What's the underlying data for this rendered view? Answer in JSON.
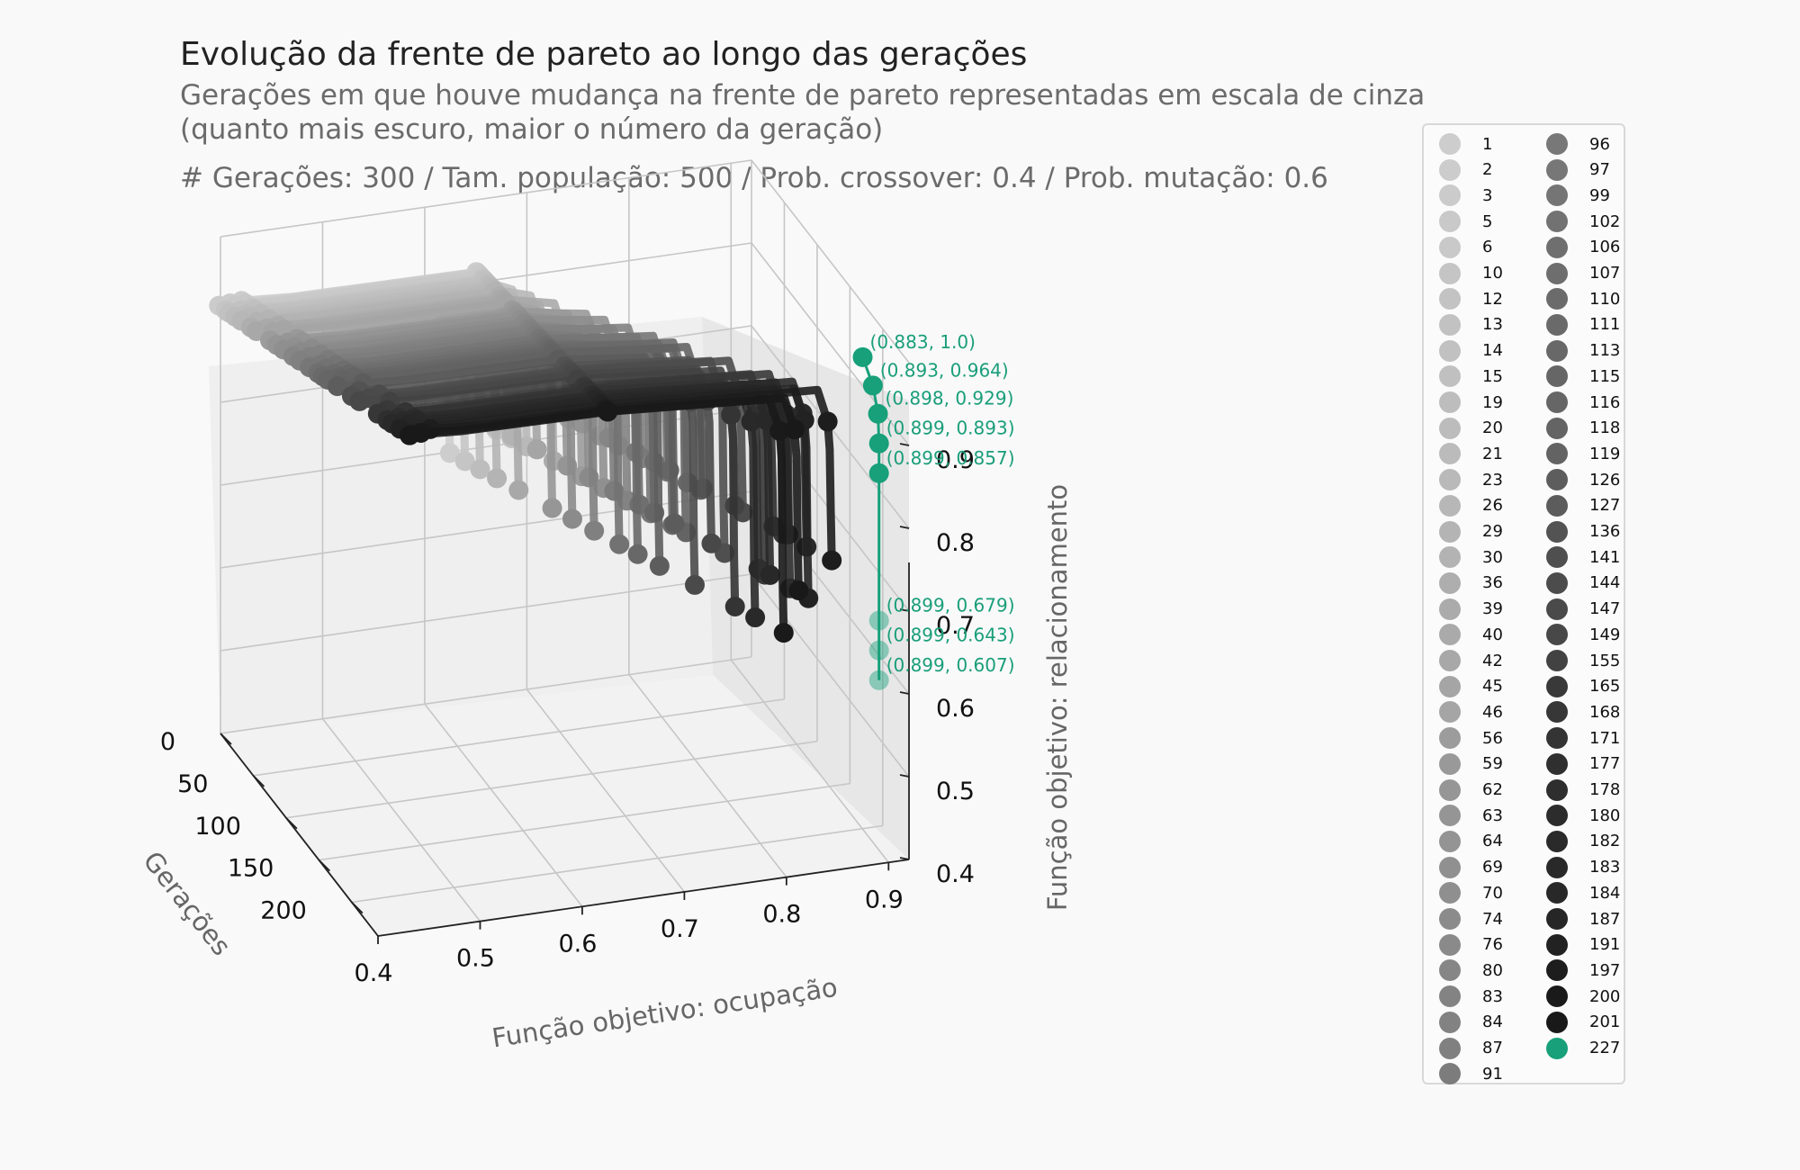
{
  "header": {
    "title": "Evolução da frente de pareto ao longo das gerações",
    "subtitle_line1": "Gerações em que houve mudança na frente de pareto representadas em escala de cinza",
    "subtitle_line2": "(quanto mais escuro, maior o número da geração)",
    "params": "# Gerações: 300 / Tam. população: 500 / Prob. crossover: 0.4 / Prob. mutação: 0.6"
  },
  "chart_data": {
    "type": "scatter3d",
    "xlabel": "Função objetivo: ocupação",
    "ylabel": "Gerações",
    "zlabel": "Função objetivo: relacionamento",
    "x_ticks": [
      "0.4",
      "0.5",
      "0.6",
      "0.7",
      "0.8",
      "0.9"
    ],
    "y_ticks": [
      "0",
      "50",
      "100",
      "150",
      "200"
    ],
    "z_ticks": [
      "0.4",
      "0.5",
      "0.6",
      "0.7",
      "0.8",
      "0.9"
    ],
    "xlim": [
      0.4,
      0.92
    ],
    "ylim": [
      0,
      240
    ],
    "zlim": [
      0.4,
      1.0
    ],
    "legend_position": "right",
    "generations": [
      1,
      2,
      3,
      5,
      6,
      10,
      12,
      13,
      14,
      15,
      19,
      20,
      21,
      23,
      26,
      29,
      30,
      36,
      39,
      40,
      42,
      45,
      46,
      56,
      59,
      62,
      63,
      64,
      69,
      70,
      74,
      76,
      80,
      83,
      84,
      87,
      91,
      96,
      97,
      99,
      102,
      106,
      107,
      110,
      111,
      113,
      115,
      116,
      118,
      119,
      126,
      127,
      136,
      141,
      144,
      147,
      149,
      155,
      165,
      168,
      171,
      177,
      178,
      180,
      182,
      183,
      184,
      187,
      191,
      197,
      200,
      201,
      227
    ],
    "final_generation": 227,
    "final_color": "#17a07a",
    "final_front": [
      {
        "x": 0.883,
        "z": 1.0,
        "label": "(0.883, 1.0)"
      },
      {
        "x": 0.893,
        "z": 0.964,
        "label": "(0.893, 0.964)"
      },
      {
        "x": 0.898,
        "z": 0.929,
        "label": "(0.898, 0.929)"
      },
      {
        "x": 0.899,
        "z": 0.893,
        "label": "(0.899, 0.893)"
      },
      {
        "x": 0.899,
        "z": 0.857,
        "label": "(0.899, 0.857)"
      },
      {
        "x": 0.899,
        "z": 0.679,
        "label": "(0.899, 0.679)"
      },
      {
        "x": 0.899,
        "z": 0.643,
        "label": "(0.899, 0.643)"
      },
      {
        "x": 0.899,
        "z": 0.607,
        "label": "(0.899, 0.607)"
      }
    ]
  }
}
